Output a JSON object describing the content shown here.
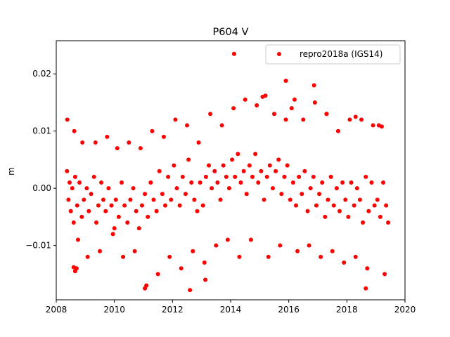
{
  "chart_data": {
    "type": "scatter",
    "title": "P604 V",
    "xlabel": "",
    "ylabel": "m",
    "xlim": [
      2008.0,
      2020.0
    ],
    "ylim": [
      -0.0195,
      0.0258
    ],
    "xticks": [
      2008,
      2010,
      2012,
      2014,
      2016,
      2018,
      2020
    ],
    "xtick_labels": [
      "2008",
      "2010",
      "2012",
      "2014",
      "2016",
      "2018",
      "2020"
    ],
    "yticks": [
      -0.01,
      0.0,
      0.01,
      0.02
    ],
    "ytick_labels": [
      "−0.01",
      "0.00",
      "0.01",
      "0.02"
    ],
    "grid": false,
    "legend_position": "upper right",
    "series": [
      {
        "name": "repro2018a (IGS14)",
        "color": "#ff0000",
        "marker": "circle",
        "x": [
          2008.37,
          2008.42,
          2008.46,
          2008.5,
          2008.55,
          2008.6,
          2008.65,
          2008.72,
          2008.8,
          2008.88,
          2008.95,
          2009.05,
          2009.12,
          2009.2,
          2009.3,
          2009.38,
          2009.45,
          2009.55,
          2009.62,
          2009.7,
          2009.8,
          2009.9,
          2010.0,
          2010.05,
          2010.15,
          2010.25,
          2010.35,
          2010.45,
          2010.55,
          2010.65,
          2010.75,
          2010.85,
          2010.95,
          2011.05,
          2011.15,
          2011.25,
          2011.35,
          2011.45,
          2011.55,
          2011.65,
          2011.75,
          2011.85,
          2011.95,
          2012.05,
          2012.15,
          2012.25,
          2012.35,
          2012.45,
          2012.55,
          2012.65,
          2012.75,
          2012.85,
          2012.95,
          2013.05,
          2013.15,
          2013.25,
          2013.35,
          2013.45,
          2013.55,
          2013.65,
          2013.75,
          2013.85,
          2013.95,
          2014.05,
          2014.15,
          2014.25,
          2014.35,
          2014.45,
          2014.55,
          2014.65,
          2014.75,
          2014.85,
          2014.95,
          2015.05,
          2015.15,
          2015.25,
          2015.35,
          2015.45,
          2015.55,
          2015.65,
          2015.75,
          2015.85,
          2015.95,
          2016.05,
          2016.15,
          2016.25,
          2016.35,
          2016.45,
          2016.55,
          2016.65,
          2016.75,
          2016.85,
          2016.95,
          2017.05,
          2017.15,
          2017.25,
          2017.35,
          2017.45,
          2017.55,
          2017.65,
          2017.75,
          2017.85,
          2017.95,
          2018.05,
          2018.15,
          2018.25,
          2018.35,
          2018.45,
          2018.55,
          2018.65,
          2018.75,
          2018.85,
          2018.95,
          2019.05,
          2019.15,
          2019.25,
          2019.35,
          2019.42,
          2008.38,
          2008.62,
          2008.7,
          2008.75,
          2008.9,
          2009.08,
          2009.35,
          2009.5,
          2009.75,
          2009.95,
          2010.1,
          2010.3,
          2010.5,
          2010.7,
          2010.9,
          2011.1,
          2011.3,
          2011.5,
          2011.7,
          2011.9,
          2012.1,
          2012.3,
          2012.5,
          2012.7,
          2012.9,
          2013.1,
          2013.3,
          2013.5,
          2013.7,
          2013.9,
          2014.1,
          2014.3,
          2014.5,
          2014.7,
          2014.9,
          2015.1,
          2015.3,
          2015.5,
          2015.7,
          2015.9,
          2016.1,
          2016.3,
          2016.5,
          2016.7,
          2016.9,
          2017.1,
          2017.3,
          2017.5,
          2017.7,
          2017.9,
          2018.1,
          2018.3,
          2018.5,
          2018.7,
          2018.9,
          2019.1,
          2019.3,
          2008.6,
          2008.65,
          2011.05,
          2012.6,
          2013.13,
          2014.12,
          2015.2,
          2015.9,
          2016.87,
          2018.65,
          2019.2,
          2016.2,
          2017.3,
          2018.3
        ],
        "y": [
          0.003,
          -0.002,
          0.001,
          -0.004,
          0.0,
          -0.006,
          0.002,
          -0.003,
          0.001,
          -0.005,
          -0.002,
          0.0,
          -0.004,
          -0.001,
          0.002,
          -0.006,
          -0.003,
          0.001,
          -0.002,
          -0.004,
          0.0,
          -0.003,
          -0.007,
          -0.002,
          -0.005,
          0.001,
          -0.003,
          -0.006,
          -0.002,
          0.0,
          -0.004,
          -0.007,
          -0.003,
          -0.001,
          -0.005,
          0.001,
          -0.002,
          -0.004,
          0.003,
          -0.001,
          -0.003,
          0.002,
          -0.002,
          0.004,
          0.0,
          -0.003,
          0.002,
          -0.001,
          0.005,
          0.001,
          -0.002,
          -0.004,
          0.001,
          -0.003,
          0.002,
          0.004,
          0.0,
          0.003,
          0.001,
          -0.002,
          0.004,
          0.002,
          0.0,
          0.005,
          0.002,
          0.006,
          0.001,
          0.003,
          -0.001,
          0.004,
          0.002,
          0.006,
          0.001,
          0.003,
          -0.002,
          0.002,
          0.004,
          0.0,
          0.003,
          0.005,
          -0.001,
          0.002,
          0.004,
          -0.002,
          0.001,
          -0.003,
          0.002,
          -0.001,
          0.003,
          -0.004,
          0.0,
          0.002,
          -0.003,
          -0.001,
          0.001,
          -0.005,
          -0.002,
          0.002,
          -0.003,
          0.0,
          -0.004,
          0.001,
          -0.002,
          -0.005,
          0.001,
          -0.003,
          0.0,
          -0.002,
          -0.006,
          0.002,
          -0.004,
          0.001,
          -0.003,
          -0.002,
          -0.005,
          0.001,
          -0.003,
          -0.006,
          0.012,
          0.01,
          -0.014,
          -0.009,
          0.008,
          -0.012,
          0.008,
          -0.011,
          0.009,
          -0.008,
          0.007,
          -0.012,
          0.008,
          -0.011,
          0.007,
          -0.017,
          0.01,
          -0.015,
          0.009,
          -0.012,
          0.012,
          -0.014,
          0.011,
          -0.011,
          0.008,
          -0.013,
          0.013,
          -0.01,
          0.011,
          -0.009,
          0.014,
          -0.012,
          0.0155,
          -0.009,
          0.0145,
          0.016,
          -0.012,
          0.013,
          -0.01,
          0.012,
          0.014,
          -0.011,
          0.012,
          -0.01,
          0.015,
          -0.012,
          0.013,
          -0.011,
          0.01,
          -0.013,
          0.012,
          -0.012,
          0.012,
          -0.014,
          0.011,
          0.011,
          -0.015,
          -0.0138,
          -0.0145,
          -0.0175,
          -0.0178,
          -0.016,
          0.0235,
          0.0162,
          0.0188,
          0.018,
          -0.0175,
          0.0108,
          0.0155,
          0.013,
          0.0125
        ]
      }
    ]
  }
}
